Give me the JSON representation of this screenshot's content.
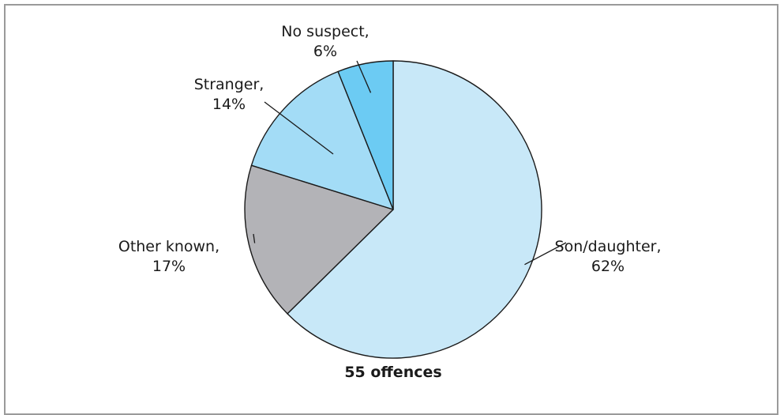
{
  "chart_data": {
    "type": "pie",
    "title": "55 offences",
    "start_angle_deg": 90,
    "direction": "clockwise",
    "slices": [
      {
        "label_line1": "Son/daughter,",
        "label_line2": "62%",
        "value": 62,
        "color": "#c8e8f8"
      },
      {
        "label_line1": "Other known,",
        "label_line2": "17%",
        "value": 17,
        "color": "#b3b3b7"
      },
      {
        "label_line1": "Stranger,",
        "label_line2": "14%",
        "value": 14,
        "color": "#a3dcf6"
      },
      {
        "label_line1": "No suspect,",
        "label_line2": "6%",
        "value": 6,
        "color": "#6ccbf3"
      }
    ]
  }
}
